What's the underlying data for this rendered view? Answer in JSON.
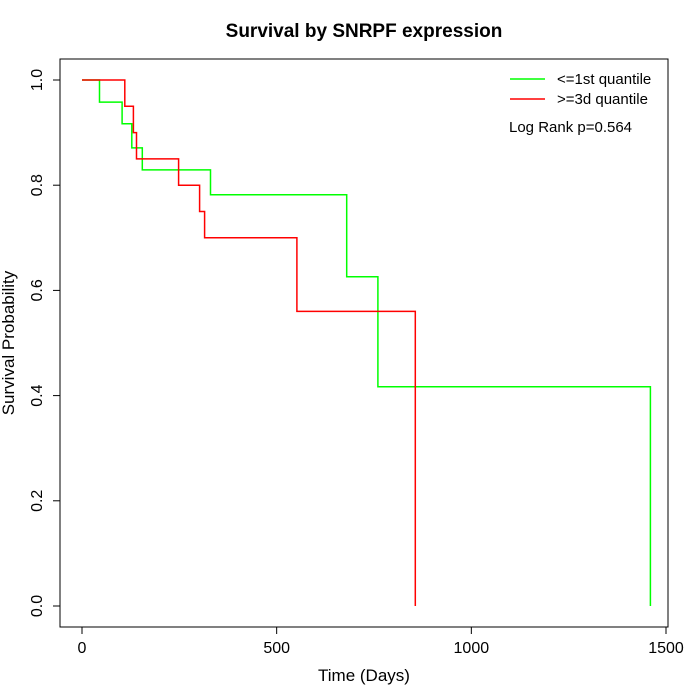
{
  "chart_data": {
    "type": "line",
    "subtype": "kaplan-meier step",
    "title": "Survival by SNRPF expression",
    "xlabel": "Time (Days)",
    "ylabel": "Survival Probability",
    "xlim": [
      0,
      1500
    ],
    "ylim": [
      0,
      1
    ],
    "x_ticks": [
      "0",
      "500",
      "1000",
      "1500"
    ],
    "y_ticks": [
      "0.0",
      "0.2",
      "0.4",
      "0.6",
      "0.8",
      "1.0"
    ],
    "grid": false,
    "legend_position": "top-right",
    "annotation": "Log Rank p=0.564",
    "series": [
      {
        "name": "<=1st quantile",
        "color": "#00ff00",
        "x": [
          0,
          45,
          45,
          103,
          103,
          128,
          128,
          155,
          155,
          330,
          330,
          680,
          680,
          760,
          760,
          1460,
          1460
        ],
        "y": [
          1.0,
          1.0,
          0.958,
          0.958,
          0.917,
          0.917,
          0.871,
          0.871,
          0.829,
          0.829,
          0.782,
          0.782,
          0.626,
          0.626,
          0.417,
          0.417,
          0.0
        ]
      },
      {
        "name": ">=3d quantile",
        "color": "#ff0000",
        "x": [
          0,
          110,
          110,
          132,
          132,
          140,
          140,
          248,
          248,
          302,
          302,
          315,
          315,
          552,
          552,
          856,
          856
        ],
        "y": [
          1.0,
          1.0,
          0.95,
          0.95,
          0.9,
          0.9,
          0.85,
          0.85,
          0.8,
          0.8,
          0.75,
          0.75,
          0.7,
          0.7,
          0.56,
          0.56,
          0.0
        ]
      }
    ]
  }
}
